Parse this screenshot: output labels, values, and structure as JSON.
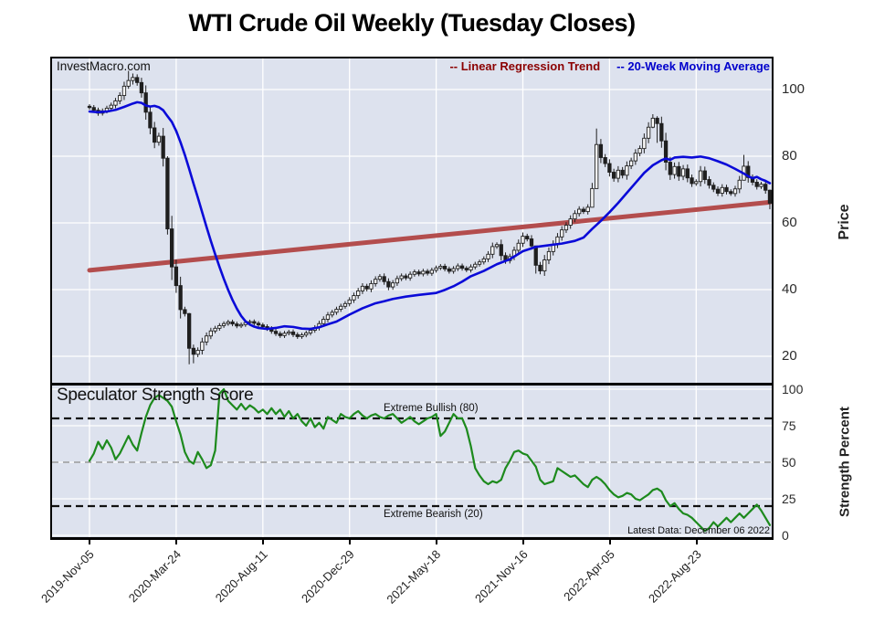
{
  "title": "WTI Crude Oil Weekly (Tuesday Closes)",
  "watermark": "InvestMacro.com",
  "legend": {
    "regression_label": "-- Linear Regression Trend",
    "ma_label": "-- 20-Week Moving Average"
  },
  "colors": {
    "panel_bg": "#dde2ee",
    "grid": "#ffffff",
    "candle": "#1f1f1f",
    "candle_hollow_fill": "#ffffff",
    "ma_line": "#0a0ad8",
    "regression_line": "#b34d4d",
    "strength_line": "#1d8a1d",
    "legend_regression_text": "#8b0000",
    "legend_ma_text": "#0000cc",
    "dash_black": "#111111",
    "dash_gray": "#999999"
  },
  "price_axis": {
    "label": "Price",
    "ticks": [
      "100",
      "80",
      "60",
      "40",
      "20"
    ]
  },
  "strength_axis": {
    "label": "Strength Percent",
    "ticks": [
      "100",
      "75",
      "50",
      "25",
      "0"
    ]
  },
  "x_axis": {
    "tick_labels": [
      "2019-Nov-05",
      "2020-Mar-24",
      "2020-Aug-11",
      "2020-Dec-29",
      "2021-May-18",
      "2021-Nov-16",
      "2022-Apr-05",
      "2022-Aug-23"
    ],
    "tick_bars": [
      0,
      20,
      40,
      60,
      80,
      100,
      120,
      140
    ]
  },
  "strength_panel": {
    "title": "Speculator Strength Score",
    "bullish_label": "Extreme Bullish (80)",
    "bearish_label": "Extreme Bearish (20)",
    "latest_label": "Latest Data: December 06 2022",
    "bullish_level": 80,
    "mid_level": 50,
    "bearish_level": 20
  },
  "chart_data": {
    "type": "candlestick+line",
    "x_tick_labels": [
      "2019-Nov-05",
      "2020-Mar-24",
      "2020-Aug-11",
      "2020-Dec-29",
      "2021-May-18",
      "2021-Nov-16",
      "2022-Apr-05",
      "2022-Aug-23"
    ],
    "x_tick_bars": [
      0,
      20,
      40,
      60,
      80,
      100,
      120,
      140
    ],
    "price_panel": {
      "ylabel": "Price",
      "ylim": [
        12,
        110
      ],
      "yticks": [
        100,
        80,
        60,
        40,
        20
      ],
      "closes": [
        94.6,
        93.8,
        92.9,
        93.6,
        94.4,
        95.3,
        96.6,
        98.2,
        101.0,
        102.7,
        103.6,
        102.1,
        99.0,
        93.2,
        88.5,
        84.2,
        86.0,
        79.4,
        58.2,
        46.8,
        41.2,
        34.0,
        32.8,
        22.4,
        20.6,
        21.8,
        24.3,
        26.1,
        27.6,
        28.4,
        29.2,
        29.8,
        30.3,
        29.7,
        29.1,
        29.5,
        30.1,
        30.4,
        29.9,
        29.4,
        28.9,
        28.3,
        27.5,
        26.8,
        26.2,
        26.9,
        27.3,
        26.5,
        25.9,
        26.4,
        27.0,
        27.8,
        28.6,
        29.8,
        31.1,
        32.4,
        33.2,
        34.1,
        35.0,
        35.8,
        36.9,
        38.2,
        39.6,
        41.0,
        40.2,
        41.8,
        43.1,
        43.9,
        42.4,
        40.8,
        42.0,
        43.3,
        44.1,
        43.5,
        44.6,
        45.3,
        44.7,
        45.5,
        44.9,
        45.8,
        46.5,
        47.0,
        46.2,
        45.5,
        46.3,
        47.1,
        46.4,
        45.9,
        46.8,
        47.6,
        48.3,
        49.2,
        50.6,
        52.9,
        53.5,
        50.2,
        48.7,
        49.9,
        51.8,
        53.9,
        56.0,
        55.2,
        53.1,
        47.3,
        45.6,
        48.9,
        51.4,
        53.6,
        55.8,
        57.9,
        59.3,
        61.2,
        62.8,
        64.1,
        63.4,
        64.7,
        70.3,
        83.5,
        79.6,
        77.8,
        75.2,
        73.4,
        75.8,
        74.3,
        77.1,
        78.6,
        80.9,
        82.3,
        85.4,
        88.7,
        91.4,
        89.8,
        84.6,
        78.2,
        74.5,
        76.9,
        74.0,
        76.2,
        73.5,
        71.8,
        72.4,
        75.6,
        73.0,
        71.3,
        70.1,
        68.9,
        70.6,
        69.4,
        68.8,
        70.2,
        72.8,
        77.0,
        73.6,
        72.2,
        70.9,
        71.6,
        69.8,
        65.9
      ],
      "wick_overrides": {
        "9": [
          105.6,
          100.2
        ],
        "10": [
          104.8,
          101.5
        ],
        "18": [
          80.0,
          56.5
        ],
        "23": [
          33.0,
          17.6
        ],
        "24": [
          23.5,
          17.9
        ],
        "103": [
          53.0,
          44.8
        ],
        "116": [
          72.0,
          64.8
        ],
        "117": [
          88.3,
          70.5
        ],
        "130": [
          92.6,
          88.4
        ],
        "131": [
          92.0,
          84.0
        ],
        "151": [
          80.4,
          72.8
        ],
        "157": [
          70.0,
          64.1
        ]
      },
      "moving_average_points": [
        [
          0,
          93.4
        ],
        [
          2,
          93.2
        ],
        [
          4,
          93.4
        ],
        [
          6,
          93.9
        ],
        [
          8,
          94.8
        ],
        [
          10,
          95.8
        ],
        [
          11,
          96.2
        ],
        [
          12,
          96.0
        ],
        [
          13,
          95.2
        ],
        [
          14,
          94.9
        ],
        [
          15,
          95.1
        ],
        [
          16,
          94.7
        ],
        [
          17,
          93.8
        ],
        [
          18,
          92.0
        ],
        [
          19,
          90.3
        ],
        [
          20,
          87.6
        ],
        [
          21,
          84.2
        ],
        [
          22,
          80.4
        ],
        [
          23,
          76.2
        ],
        [
          24,
          71.8
        ],
        [
          25,
          67.6
        ],
        [
          26,
          63.2
        ],
        [
          27,
          58.8
        ],
        [
          28,
          54.6
        ],
        [
          29,
          50.6
        ],
        [
          30,
          46.8
        ],
        [
          31,
          43.2
        ],
        [
          32,
          39.9
        ],
        [
          33,
          36.9
        ],
        [
          34,
          34.3
        ],
        [
          35,
          32.1
        ],
        [
          36,
          30.5
        ],
        [
          37,
          29.5
        ],
        [
          38,
          28.9
        ],
        [
          39,
          28.5
        ],
        [
          41,
          28.2
        ],
        [
          43,
          28.5
        ],
        [
          45,
          29.0
        ],
        [
          47,
          28.8
        ],
        [
          49,
          28.3
        ],
        [
          51,
          28.2
        ],
        [
          53,
          28.7
        ],
        [
          55,
          29.6
        ],
        [
          57,
          30.4
        ],
        [
          60,
          32.5
        ],
        [
          63,
          34.4
        ],
        [
          66,
          35.9
        ],
        [
          68,
          36.5
        ],
        [
          70,
          37.2
        ],
        [
          73,
          37.9
        ],
        [
          76,
          38.4
        ],
        [
          80,
          39.0
        ],
        [
          82,
          39.9
        ],
        [
          84,
          41.0
        ],
        [
          86,
          42.4
        ],
        [
          88,
          44.0
        ],
        [
          91,
          45.6
        ],
        [
          94,
          47.6
        ],
        [
          97,
          49.1
        ],
        [
          100,
          51.5
        ],
        [
          103,
          52.8
        ],
        [
          106,
          53.3
        ],
        [
          109,
          53.8
        ],
        [
          112,
          54.6
        ],
        [
          114,
          55.6
        ],
        [
          116,
          58.2
        ],
        [
          118,
          60.6
        ],
        [
          120,
          63.2
        ],
        [
          122,
          66.0
        ],
        [
          124,
          69.0
        ],
        [
          126,
          72.0
        ],
        [
          128,
          75.0
        ],
        [
          130,
          77.3
        ],
        [
          132,
          78.8
        ],
        [
          133,
          79.3
        ],
        [
          134,
          78.9
        ],
        [
          135,
          79.6
        ],
        [
          137,
          79.8
        ],
        [
          139,
          79.6
        ],
        [
          141,
          79.9
        ],
        [
          143,
          79.4
        ],
        [
          145,
          78.5
        ],
        [
          147,
          77.5
        ],
        [
          149,
          76.2
        ],
        [
          151,
          74.8
        ],
        [
          152,
          74.0
        ],
        [
          153,
          73.4
        ],
        [
          154,
          73.8
        ],
        [
          155,
          73.1
        ],
        [
          156,
          72.6
        ],
        [
          157,
          71.9
        ]
      ],
      "regression_points": [
        [
          0,
          45.8
        ],
        [
          157,
          66.2
        ]
      ]
    },
    "strength_panel": {
      "ylabel": "Strength Percent",
      "ylim": [
        0,
        100
      ],
      "yticks": [
        100,
        75,
        50,
        25,
        0
      ],
      "values": [
        51,
        56,
        64,
        59,
        65,
        60,
        52,
        56,
        62,
        68,
        62,
        58,
        70,
        81,
        89,
        94,
        96,
        94,
        92,
        88,
        78,
        69,
        57,
        51,
        49,
        57,
        52,
        46,
        48,
        58,
        97,
        100,
        92,
        89,
        86,
        90,
        86,
        89,
        87,
        84,
        86,
        83,
        87,
        83,
        86,
        81,
        85,
        80,
        83,
        78,
        75,
        80,
        74,
        77,
        73,
        81,
        79,
        77,
        83,
        81,
        80,
        83,
        85,
        82,
        80,
        82,
        83,
        81,
        80,
        82,
        83,
        80,
        77,
        79,
        81,
        78,
        76,
        78,
        80,
        81,
        83,
        68,
        71,
        77,
        83,
        80,
        80,
        73,
        61,
        46,
        41,
        37,
        35,
        37,
        36,
        38,
        46,
        51,
        57,
        58,
        56,
        55,
        51,
        47,
        38,
        35,
        36,
        37,
        46,
        44,
        42,
        40,
        41,
        38,
        35,
        33,
        38,
        40,
        38,
        35,
        31,
        28,
        26,
        27,
        29,
        28,
        25,
        24,
        26,
        28,
        31,
        32,
        30,
        24,
        20,
        22,
        18,
        15,
        14,
        12,
        9,
        6,
        3,
        5,
        9,
        6,
        9,
        12,
        9,
        12,
        15,
        12,
        15,
        18,
        21,
        17,
        12,
        7
      ]
    }
  }
}
